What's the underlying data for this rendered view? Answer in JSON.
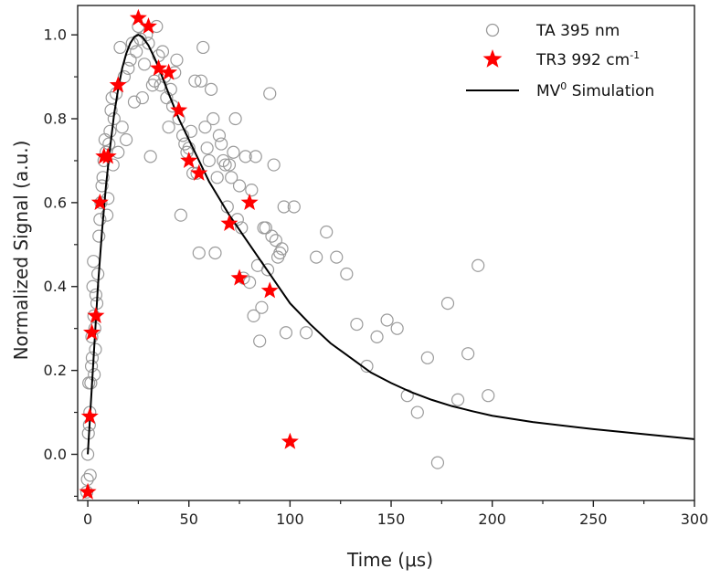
{
  "chart_data": {
    "type": "scatter",
    "xlabel": "Time (μs)",
    "ylabel": "Normalized Signal (a.u.)",
    "xlim": [
      -5,
      300
    ],
    "ylim": [
      -0.11,
      1.07
    ],
    "x_ticks": [
      0,
      50,
      100,
      150,
      200,
      250,
      300
    ],
    "y_ticks": [
      0.0,
      0.2,
      0.4,
      0.6,
      0.8,
      1.0
    ],
    "x_tick_labels": [
      "0",
      "50",
      "100",
      "150",
      "200",
      "250",
      "300"
    ],
    "y_tick_labels": [
      "0.0",
      "0.2",
      "0.4",
      "0.6",
      "0.8",
      "1.0"
    ],
    "grid": false,
    "legend_position": "top-right",
    "legend": {
      "ta": "TA 395 nm",
      "tr3_base": "TR3 992 cm",
      "tr3_sup": "-1",
      "sim_base": "MV",
      "sim_sup": "0",
      "sim_rest": " Simulation"
    },
    "colors": {
      "ta": "#9a9a9a",
      "tr3": "#ff0000",
      "sim": "#000000",
      "axis": "#222222"
    },
    "series": [
      {
        "name": "TA 395 nm",
        "marker": "open-circle",
        "points": [
          [
            -0.5,
            -0.09
          ],
          [
            -0.2,
            -0.06
          ],
          [
            0,
            0.0
          ],
          [
            0.3,
            0.05
          ],
          [
            0.5,
            0.17
          ],
          [
            0.8,
            0.07
          ],
          [
            1,
            0.1
          ],
          [
            1.2,
            -0.05
          ],
          [
            1.5,
            0.17
          ],
          [
            1.8,
            0.21
          ],
          [
            2,
            0.28
          ],
          [
            2.2,
            0.23
          ],
          [
            2.5,
            0.4
          ],
          [
            2.8,
            0.46
          ],
          [
            3,
            0.33
          ],
          [
            3.2,
            0.19
          ],
          [
            3.5,
            0.3
          ],
          [
            3.8,
            0.25
          ],
          [
            4,
            0.38
          ],
          [
            4.5,
            0.36
          ],
          [
            5,
            0.43
          ],
          [
            5.5,
            0.52
          ],
          [
            6,
            0.56
          ],
          [
            6.5,
            0.6
          ],
          [
            7,
            0.64
          ],
          [
            7.5,
            0.66
          ],
          [
            8,
            0.7
          ],
          [
            8.5,
            0.75
          ],
          [
            9,
            0.72
          ],
          [
            9.5,
            0.57
          ],
          [
            10,
            0.61
          ],
          [
            10.5,
            0.74
          ],
          [
            11,
            0.77
          ],
          [
            11.5,
            0.82
          ],
          [
            12,
            0.85
          ],
          [
            12.5,
            0.69
          ],
          [
            13,
            0.8
          ],
          [
            14,
            0.86
          ],
          [
            15,
            0.72
          ],
          [
            16,
            0.97
          ],
          [
            17,
            0.78
          ],
          [
            18,
            0.9
          ],
          [
            19,
            0.75
          ],
          [
            20,
            0.92
          ],
          [
            21,
            0.94
          ],
          [
            22,
            0.98
          ],
          [
            23,
            0.84
          ],
          [
            24,
            0.96
          ],
          [
            25,
            1.02
          ],
          [
            26,
            0.99
          ],
          [
            27,
            0.85
          ],
          [
            28,
            0.93
          ],
          [
            29,
            1.0
          ],
          [
            30,
            0.98
          ],
          [
            31,
            0.71
          ],
          [
            32,
            0.88
          ],
          [
            33,
            0.89
          ],
          [
            34,
            1.02
          ],
          [
            35,
            0.95
          ],
          [
            36,
            0.88
          ],
          [
            37,
            0.96
          ],
          [
            38,
            0.9
          ],
          [
            39,
            0.85
          ],
          [
            40,
            0.78
          ],
          [
            41,
            0.87
          ],
          [
            42,
            0.83
          ],
          [
            43,
            0.91
          ],
          [
            44,
            0.94
          ],
          [
            45,
            0.8
          ],
          [
            46,
            0.57
          ],
          [
            47,
            0.76
          ],
          [
            48,
            0.74
          ],
          [
            49,
            0.72
          ],
          [
            50,
            0.73
          ],
          [
            51,
            0.77
          ],
          [
            52,
            0.67
          ],
          [
            53,
            0.89
          ],
          [
            54,
            0.67
          ],
          [
            55,
            0.48
          ],
          [
            56,
            0.89
          ],
          [
            57,
            0.97
          ],
          [
            58,
            0.78
          ],
          [
            59,
            0.73
          ],
          [
            60,
            0.7
          ],
          [
            61,
            0.87
          ],
          [
            62,
            0.8
          ],
          [
            63,
            0.48
          ],
          [
            64,
            0.66
          ],
          [
            65,
            0.76
          ],
          [
            66,
            0.74
          ],
          [
            67,
            0.7
          ],
          [
            68,
            0.69
          ],
          [
            69,
            0.59
          ],
          [
            70,
            0.69
          ],
          [
            71,
            0.66
          ],
          [
            72,
            0.72
          ],
          [
            73,
            0.8
          ],
          [
            74,
            0.56
          ],
          [
            75,
            0.64
          ],
          [
            76,
            0.54
          ],
          [
            77,
            0.42
          ],
          [
            78,
            0.71
          ],
          [
            80,
            0.41
          ],
          [
            81,
            0.63
          ],
          [
            82,
            0.33
          ],
          [
            83,
            0.71
          ],
          [
            84,
            0.45
          ],
          [
            85,
            0.27
          ],
          [
            86,
            0.35
          ],
          [
            87,
            0.54
          ],
          [
            88,
            0.54
          ],
          [
            89,
            0.44
          ],
          [
            90,
            0.86
          ],
          [
            91,
            0.52
          ],
          [
            92,
            0.69
          ],
          [
            93,
            0.51
          ],
          [
            94,
            0.47
          ],
          [
            95,
            0.48
          ],
          [
            96,
            0.49
          ],
          [
            97,
            0.59
          ],
          [
            98,
            0.29
          ],
          [
            102,
            0.59
          ],
          [
            108,
            0.29
          ],
          [
            113,
            0.47
          ],
          [
            118,
            0.53
          ],
          [
            123,
            0.47
          ],
          [
            128,
            0.43
          ],
          [
            133,
            0.31
          ],
          [
            138,
            0.21
          ],
          [
            143,
            0.28
          ],
          [
            148,
            0.32
          ],
          [
            153,
            0.3
          ],
          [
            158,
            0.14
          ],
          [
            163,
            0.1
          ],
          [
            168,
            0.23
          ],
          [
            173,
            -0.02
          ],
          [
            178,
            0.36
          ],
          [
            183,
            0.13
          ],
          [
            188,
            0.24
          ],
          [
            193,
            0.45
          ],
          [
            198,
            0.14
          ]
        ]
      },
      {
        "name": "TR3 992 cm-1",
        "marker": "filled-star",
        "points": [
          [
            0,
            -0.09
          ],
          [
            1,
            0.09
          ],
          [
            2,
            0.29
          ],
          [
            4,
            0.33
          ],
          [
            6,
            0.6
          ],
          [
            8,
            0.71
          ],
          [
            10,
            0.71
          ],
          [
            15,
            0.88
          ],
          [
            25,
            1.04
          ],
          [
            30,
            1.02
          ],
          [
            35,
            0.92
          ],
          [
            40,
            0.91
          ],
          [
            45,
            0.82
          ],
          [
            50,
            0.7
          ],
          [
            55,
            0.67
          ],
          [
            70,
            0.55
          ],
          [
            75,
            0.42
          ],
          [
            80,
            0.6
          ],
          [
            90,
            0.39
          ],
          [
            100,
            0.03
          ]
        ]
      },
      {
        "name": "MV0 Simulation",
        "marker": "line",
        "points": [
          [
            0,
            0.0
          ],
          [
            1,
            0.08
          ],
          [
            2,
            0.16
          ],
          [
            3,
            0.24
          ],
          [
            5,
            0.4
          ],
          [
            7,
            0.53
          ],
          [
            9,
            0.64
          ],
          [
            11,
            0.73
          ],
          [
            13,
            0.81
          ],
          [
            15,
            0.87
          ],
          [
            17,
            0.92
          ],
          [
            19,
            0.955
          ],
          [
            21,
            0.98
          ],
          [
            23,
            0.995
          ],
          [
            25,
            1.0
          ],
          [
            27,
            0.995
          ],
          [
            30,
            0.975
          ],
          [
            33,
            0.945
          ],
          [
            36,
            0.91
          ],
          [
            40,
            0.86
          ],
          [
            45,
            0.8
          ],
          [
            50,
            0.75
          ],
          [
            55,
            0.7
          ],
          [
            60,
            0.65
          ],
          [
            65,
            0.61
          ],
          [
            70,
            0.57
          ],
          [
            75,
            0.535
          ],
          [
            80,
            0.5
          ],
          [
            85,
            0.465
          ],
          [
            90,
            0.43
          ],
          [
            95,
            0.395
          ],
          [
            100,
            0.36
          ],
          [
            110,
            0.31
          ],
          [
            120,
            0.265
          ],
          [
            130,
            0.23
          ],
          [
            140,
            0.195
          ],
          [
            150,
            0.17
          ],
          [
            160,
            0.148
          ],
          [
            170,
            0.13
          ],
          [
            180,
            0.115
          ],
          [
            190,
            0.103
          ],
          [
            200,
            0.092
          ],
          [
            220,
            0.077
          ],
          [
            250,
            0.06
          ],
          [
            275,
            0.048
          ],
          [
            300,
            0.036
          ]
        ]
      }
    ]
  }
}
